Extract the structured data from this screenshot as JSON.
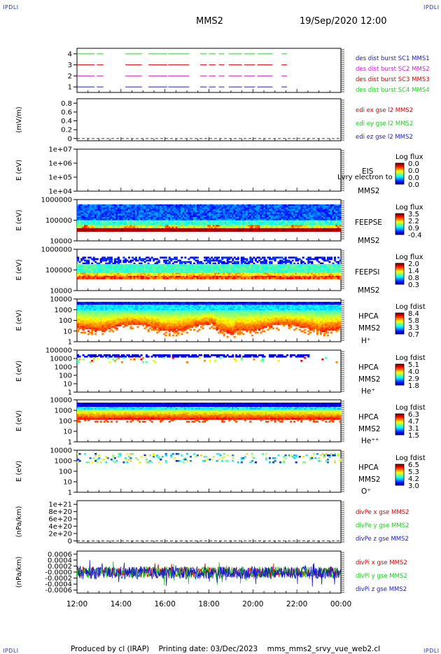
{
  "header": {
    "title": "MMS2",
    "datetime": "19/Sep/2020 12:00"
  },
  "corners": {
    "tl": "IPDLI",
    "tr": "IPDLI",
    "bl": "IPDLI",
    "br": "IPDLI"
  },
  "footer": {
    "text": "Produced by cl (IRAP)    Printing date: 03/Dec/2023    mms_mms2_srvy_vue_web2.cl"
  },
  "colors": {
    "mms1": "#1a1acc",
    "mms2": "#cc22cc",
    "mms3": "#dd0000",
    "mms4": "#22cc22"
  },
  "chart_data": [
    {
      "type": "line",
      "panel": "burst",
      "ylim": [
        0.5,
        4.5
      ],
      "yticks": [
        {
          "v": 1,
          "l": "1"
        },
        {
          "v": 2,
          "l": "2"
        },
        {
          "v": 3,
          "l": "3"
        },
        {
          "v": 4,
          "l": "4"
        }
      ],
      "ylabel": "",
      "x_range_hours": [
        12,
        24
      ],
      "intervals": [
        [
          12.0,
          12.8
        ],
        [
          12.9,
          13.2
        ],
        [
          14.2,
          14.95
        ],
        [
          15.25,
          16.1
        ],
        [
          16.15,
          17.1
        ],
        [
          17.6,
          17.9
        ],
        [
          18.0,
          18.3
        ],
        [
          18.45,
          18.7
        ],
        [
          18.9,
          19.5
        ],
        [
          19.6,
          20.1
        ],
        [
          20.2,
          20.9
        ],
        [
          21.3,
          21.55
        ]
      ],
      "legend": [
        {
          "text": "des dist burst SC1 MMS1",
          "color": "#1a1acc"
        },
        {
          "text": "des dist burst SC2 MMS2",
          "color": "#cc22cc"
        },
        {
          "text": "des dist burst SC3 MMS3",
          "color": "#dd0000"
        },
        {
          "text": "des dist burst SC4 MMS4",
          "color": "#22cc22"
        }
      ]
    },
    {
      "type": "line",
      "panel": "edi",
      "ylim": [
        -0.05,
        0.9
      ],
      "yticks": [
        {
          "v": 0,
          "l": "0"
        },
        {
          "v": 0.2,
          "l": "0.2"
        },
        {
          "v": 0.4,
          "l": "0.4"
        },
        {
          "v": 0.6,
          "l": "0.6"
        },
        {
          "v": 0.8,
          "l": "0.8"
        }
      ],
      "ylabel": "(mV/m)",
      "legend": [
        {
          "text": "edi ex gse l2 MMS2",
          "color": "#dd0000"
        },
        {
          "text": "edi ey gse l2 MMS2",
          "color": "#22cc22"
        },
        {
          "text": "edi ez gse l2 MMS2",
          "color": "#1a1acc"
        }
      ]
    },
    {
      "type": "heatmap",
      "panel": "eis",
      "ylabel": "E (eV)",
      "yticks": [
        "1e+07",
        "1e+06",
        "1e+05",
        "1e+04"
      ],
      "labels": [
        "EIS",
        "MMS2"
      ],
      "overlay": "Lvry electron to",
      "cbar": {
        "title": "Log flux",
        "ticks": [
          "0.0",
          "0.0",
          "0.0",
          "0.0"
        ]
      }
    },
    {
      "type": "heatmap",
      "panel": "feepse",
      "ylabel": "E (eV)",
      "yticks": [
        "1000000",
        "100000",
        "10000"
      ],
      "labels": [
        "FEEPSE",
        "MMS2"
      ],
      "cbar": {
        "title": "Log flux",
        "ticks": [
          "3.5",
          "2.2",
          "0.9",
          "-0.4"
        ]
      }
    },
    {
      "type": "heatmap",
      "panel": "feepsi",
      "ylabel": "E (eV)",
      "yticks": [
        "1000000",
        "100000",
        "10000"
      ],
      "labels": [
        "FEEPSI",
        "MMS2"
      ],
      "cbar": {
        "title": "Log flux",
        "ticks": [
          "2.0",
          "1.4",
          "0.8",
          "0.3"
        ]
      }
    },
    {
      "type": "heatmap",
      "panel": "hpca_h",
      "ylabel": "E (eV)",
      "yticks": [
        "10000",
        "1000",
        "100",
        "10",
        "1"
      ],
      "labels": [
        "HPCA",
        "MMS2",
        "H⁺"
      ],
      "cbar": {
        "title": "Log fdist",
        "ticks": [
          "8.4",
          "5.8",
          "3.3",
          "0.7"
        ]
      }
    },
    {
      "type": "heatmap",
      "panel": "hpca_he",
      "ylabel": "E (eV)",
      "yticks": [
        "100000",
        "10000",
        "1000",
        "100",
        "10",
        "1"
      ],
      "labels": [
        "HPCA",
        "MMS2",
        "He⁺"
      ],
      "cbar": {
        "title": "Log fdist",
        "ticks": [
          "5.1",
          "4.0",
          "2.9",
          "1.8"
        ]
      }
    },
    {
      "type": "heatmap",
      "panel": "hpca_hepp",
      "ylabel": "E (eV)",
      "yticks": [
        "10000",
        "1000",
        "100",
        "10",
        "1"
      ],
      "labels": [
        "HPCA",
        "MMS2",
        "He⁺⁺"
      ],
      "cbar": {
        "title": "Log fdist",
        "ticks": [
          "6.3",
          "4.7",
          "3.1",
          "1.5"
        ]
      }
    },
    {
      "type": "heatmap",
      "panel": "hpca_o",
      "ylabel": "E (eV)",
      "yticks": [
        "10000",
        "1000",
        "100",
        "10",
        "1"
      ],
      "labels": [
        "HPCA",
        "MMS2",
        "O⁺"
      ],
      "cbar": {
        "title": "Log fdist",
        "ticks": [
          "6.5",
          "5.3",
          "4.2",
          "3.0"
        ]
      }
    },
    {
      "type": "line",
      "panel": "divpe",
      "ylim": [
        -5e+19,
        1.1e+21
      ],
      "yticks": [
        {
          "v": 0,
          "l": "0"
        },
        {
          "v": 2e+20,
          "l": "2e+20"
        },
        {
          "v": 4e+20,
          "l": "4e+20"
        },
        {
          "v": 6e+20,
          "l": "6e+20"
        },
        {
          "v": 8e+20,
          "l": "8e+20"
        },
        {
          "v": 1e+21,
          "l": "1e+21"
        }
      ],
      "ylabel": "(nPa/km)",
      "legend": [
        {
          "text": "divPe x gse MMS2",
          "color": "#dd0000"
        },
        {
          "text": "divPe y gse MMS2",
          "color": "#22cc22"
        },
        {
          "text": "divPe z gse MMS2",
          "color": "#1a1acc"
        }
      ]
    },
    {
      "type": "line",
      "panel": "divpi",
      "ylim": [
        -0.0007,
        0.0007
      ],
      "yticks": [
        {
          "v": 0.0006,
          "l": "0.0006"
        },
        {
          "v": 0.0004,
          "l": "0.0004"
        },
        {
          "v": 0.0002,
          "l": "0.0002"
        },
        {
          "v": 0,
          "l": "-0.0000"
        },
        {
          "v": -0.0002,
          "l": "-0.0002"
        },
        {
          "v": -0.0004,
          "l": "-0.0004"
        },
        {
          "v": -0.0006,
          "l": "-0.0006"
        }
      ],
      "ylabel": "(nPa/km)",
      "legend": [
        {
          "text": "divPi x gse MMS2",
          "color": "#dd0000"
        },
        {
          "text": "divPi y gse MMS2",
          "color": "#22cc22"
        },
        {
          "text": "divPi z gse MMS2",
          "color": "#1a1acc"
        }
      ]
    }
  ],
  "xaxis": {
    "ticks": [
      "12:00",
      "14:00",
      "16:00",
      "18:00",
      "20:00",
      "22:00",
      "00:00"
    ]
  }
}
